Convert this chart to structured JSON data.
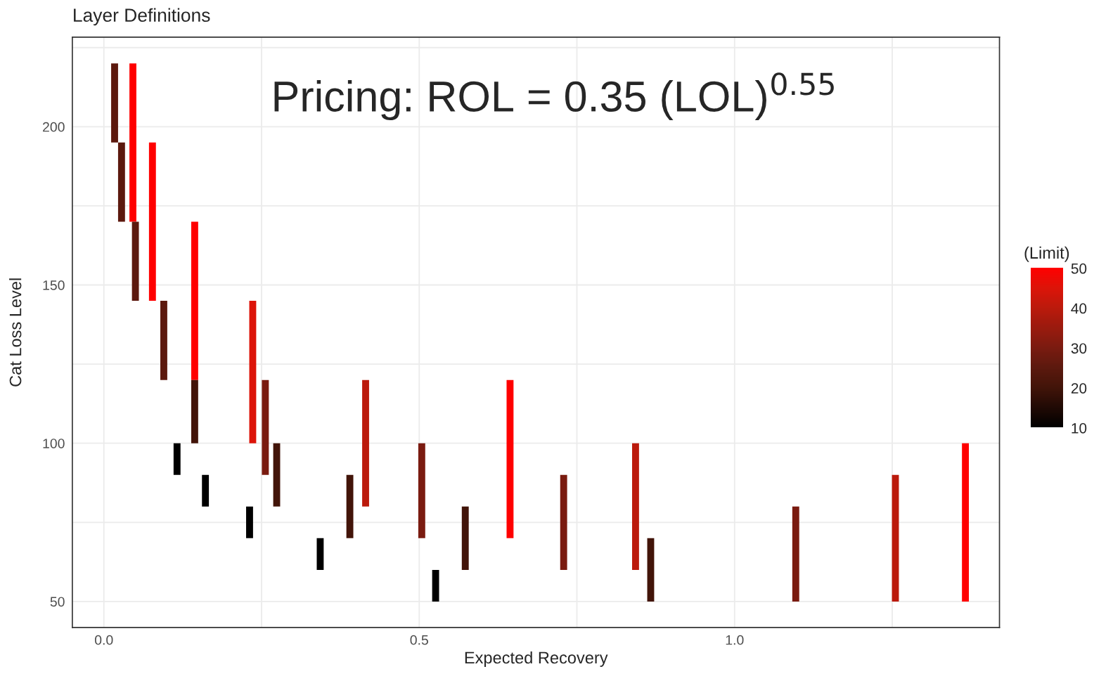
{
  "chart_data": {
    "type": "bar",
    "title": "Layer Definitions",
    "xlabel": "Expected Recovery",
    "ylabel": "Cat Loss Level",
    "clabel": "(Limit)",
    "annotations": [
      "Pricing: ROL = 0.35 (LOL)$^{0.55}$"
    ],
    "series": [
      {
        "x": [
          0.017,
          0.028,
          0.046,
          0.05,
          0.077,
          0.095,
          0.116,
          0.144,
          0.161,
          0.231,
          0.236,
          0.256,
          0.274,
          0.343,
          0.39,
          0.415,
          0.504,
          0.526,
          0.573,
          0.644,
          0.729,
          0.843,
          0.867,
          1.097,
          1.255,
          1.366
        ],
        "base": [
          195,
          170,
          170,
          145,
          145,
          120,
          90,
          120,
          80,
          70,
          100,
          90,
          80,
          60,
          70,
          80,
          70,
          50,
          60,
          70,
          60,
          60,
          50,
          50,
          50,
          50
        ],
        "values": [
          25,
          25,
          50,
          25,
          50,
          25,
          10,
          50,
          10,
          10,
          45,
          30,
          20,
          10,
          20,
          40,
          30,
          10,
          20,
          50,
          30,
          40,
          20,
          30,
          40,
          50
        ],
        "colors": [
          "#5c190e",
          "#5c190e",
          "#ff0000",
          "#5c190e",
          "#ff0000",
          "#5c190e",
          "#000000",
          "#ff0000",
          "#000000",
          "#000000",
          "#dc1409",
          "#7a1b10",
          "#421409",
          "#000000",
          "#421409",
          "#bb1a0c",
          "#7a1b10",
          "#000000",
          "#421409",
          "#ff0000",
          "#7a1b10",
          "#bb1a0c",
          "#421409",
          "#7a1b10",
          "#bb1a0c",
          "#ff0000"
        ]
      },
      {
        "x": [
          0.144
        ],
        "base": [
          100
        ],
        "values": [
          20
        ],
        "colors": [
          "#421409"
        ]
      }
    ],
    "xlim": [
      -0.05,
      1.42
    ],
    "ylim": [
      41.8,
      228.3
    ],
    "xticks": [
      {
        "value": 0,
        "label": "0.0"
      },
      {
        "value": 0.25,
        "label": null
      },
      0.5,
      {
        "value": 0.75,
        "label": null
      },
      {
        "value": 1,
        "label": "1.0"
      },
      {
        "value": 1.25,
        "label": null
      }
    ],
    "yticks": [
      50,
      {
        "value": 75,
        "label": null
      },
      100,
      {
        "value": 125,
        "label": null
      },
      150,
      {
        "value": 175,
        "label": null
      },
      200,
      {
        "value": 225,
        "label": null
      }
    ],
    "clim": [
      10,
      50
    ],
    "cticks": [
      10,
      20,
      30,
      40,
      50
    ],
    "grid": true,
    "legend": false
  }
}
